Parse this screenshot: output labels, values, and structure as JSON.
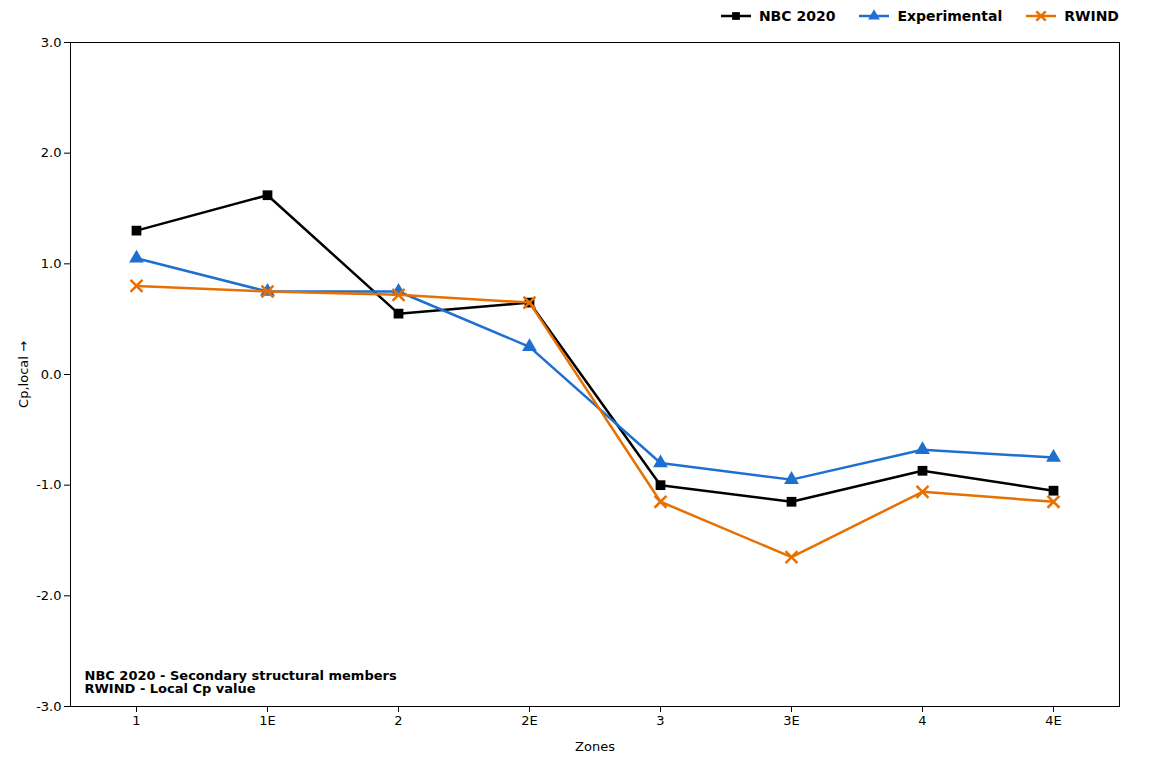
{
  "chart_data": {
    "type": "line",
    "categories": [
      "1",
      "1E",
      "2",
      "2E",
      "3",
      "3E",
      "4",
      "4E"
    ],
    "series": [
      {
        "name": "NBC 2020",
        "color": "#000000",
        "marker": "square",
        "values": [
          1.3,
          1.62,
          0.55,
          0.65,
          -1.0,
          -1.15,
          -0.87,
          -1.05
        ]
      },
      {
        "name": "Experimental",
        "color": "#1F6FD0",
        "marker": "triangle",
        "values": [
          1.05,
          0.75,
          0.75,
          0.25,
          -0.8,
          -0.95,
          -0.68,
          -0.75
        ]
      },
      {
        "name": "RWIND",
        "color": "#E87000",
        "marker": "x",
        "values": [
          0.8,
          0.75,
          0.72,
          0.65,
          -1.15,
          -1.65,
          -1.06,
          -1.15
        ]
      }
    ],
    "xlabel": "Zones",
    "ylabel": "Cp,local",
    "ylim": [
      -3.0,
      3.0
    ],
    "yticks": [
      {
        "value": -3,
        "label": "-3.0"
      },
      {
        "value": -2,
        "label": "-2.0"
      },
      {
        "value": -1,
        "label": "-1.0"
      },
      {
        "value": 0,
        "label": "0.0"
      },
      {
        "value": 1,
        "label": "1.0"
      },
      {
        "value": 2,
        "label": "2.0"
      },
      {
        "value": 3,
        "label": "3.0"
      }
    ],
    "annotations": [
      "NBC 2020 - Secondary structural members\nRWIND - Local Cp value"
    ],
    "grid": false,
    "legend": "upper right"
  }
}
